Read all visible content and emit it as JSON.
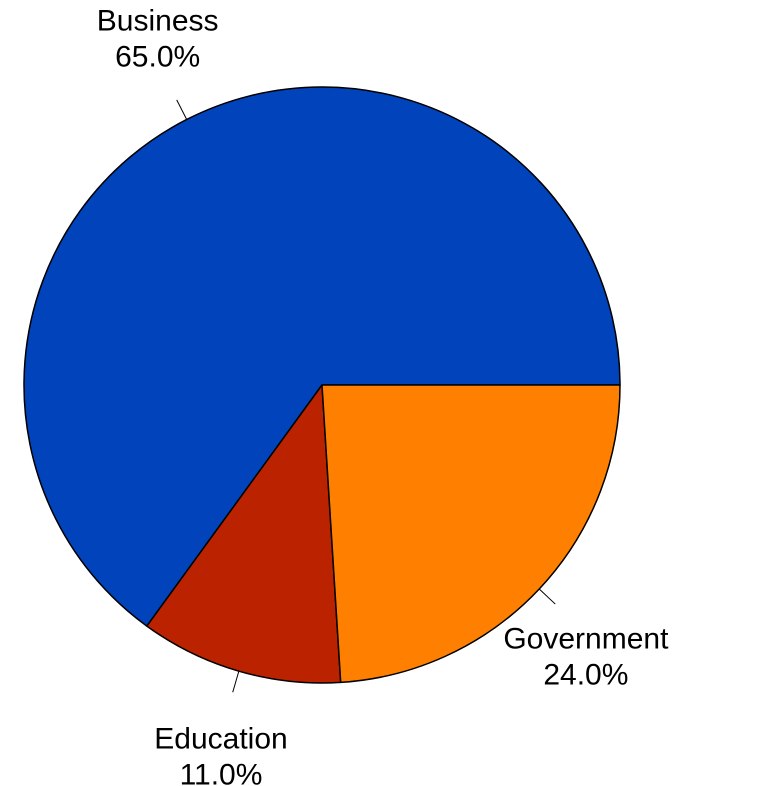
{
  "chart_data": {
    "type": "pie",
    "title": "",
    "start_angle_deg": 0,
    "direction": "counterclockwise",
    "slices": [
      {
        "label": "Business",
        "value": 65.0,
        "pct_label": "65.0%",
        "color": "#0043BB"
      },
      {
        "label": "Education",
        "value": 11.0,
        "pct_label": "11.0%",
        "color": "#BB2200"
      },
      {
        "label": "Government",
        "value": 24.0,
        "pct_label": "24.0%",
        "color": "#FF8000"
      }
    ],
    "legend": "none"
  }
}
